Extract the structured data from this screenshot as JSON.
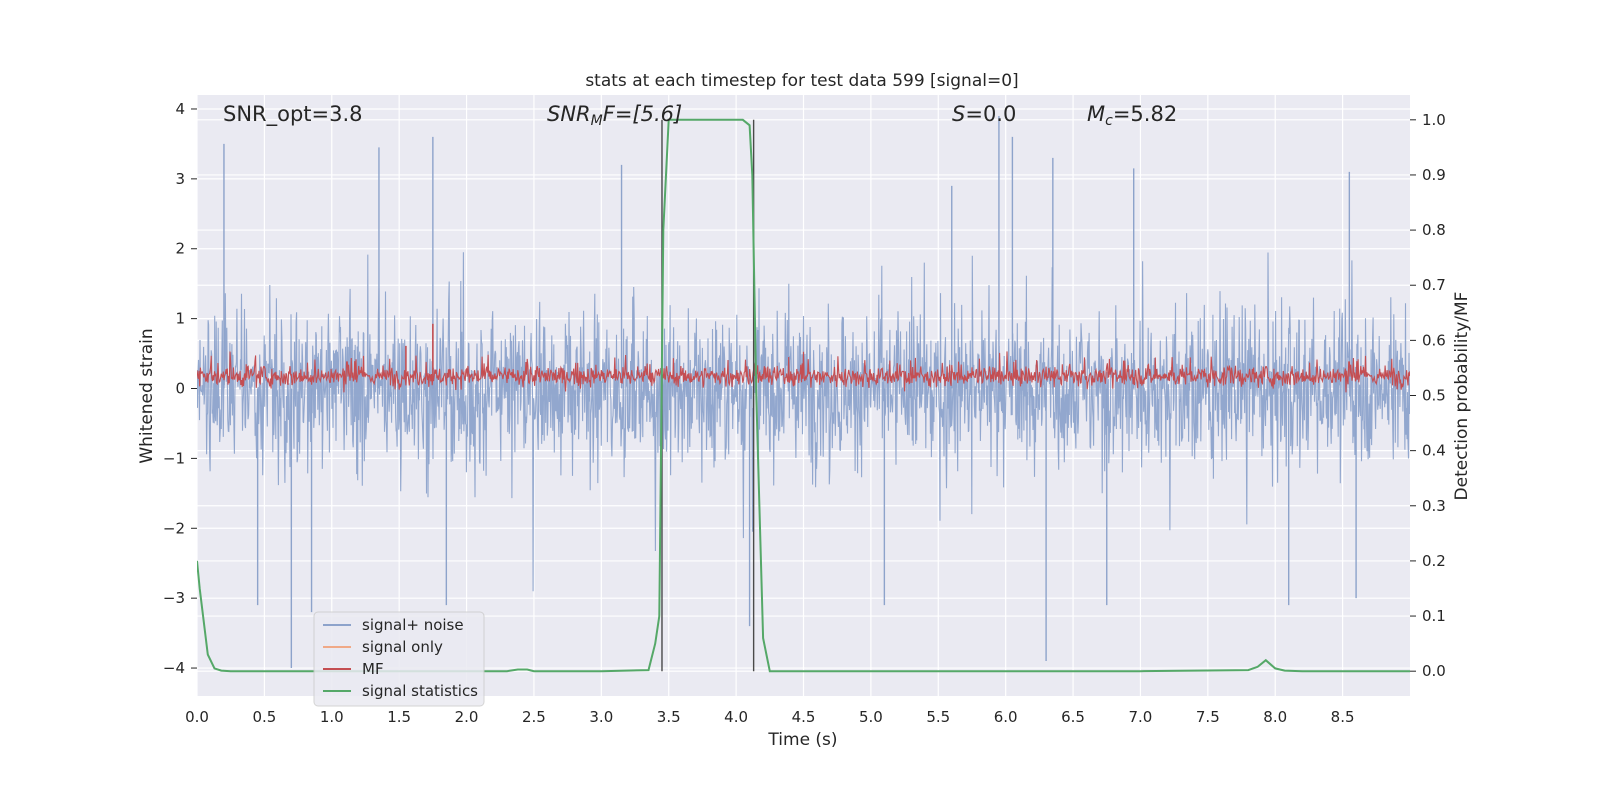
{
  "chart_data": {
    "type": "line",
    "title": "stats at each timestep for test data 599 [signal=0]",
    "xlabel": "Time (s)",
    "ylabel": "Whitened strain",
    "y2label": "Detection probability/MF",
    "xlim": [
      0.0,
      9.0
    ],
    "ylim": [
      -4.4,
      4.2
    ],
    "y2lim": [
      -0.045,
      1.045
    ],
    "x_ticks": [
      "0.0",
      "0.5",
      "1.0",
      "1.5",
      "2.0",
      "2.5",
      "3.0",
      "3.5",
      "4.0",
      "4.5",
      "5.0",
      "5.5",
      "6.0",
      "6.5",
      "7.0",
      "7.5",
      "8.0",
      "8.5"
    ],
    "y_ticks": [
      "4",
      "3",
      "2",
      "1",
      "0",
      "−1",
      "−2",
      "−3",
      "−4"
    ],
    "y2_ticks": [
      "1.0",
      "0.9",
      "0.8",
      "0.7",
      "0.6",
      "0.5",
      "0.4",
      "0.3",
      "0.2",
      "0.1",
      "0.0"
    ],
    "grid": true,
    "legend_position": "lower-left",
    "annotations": {
      "snr_opt": "SNR_opt=3.8",
      "snr_mf_base": "SNR",
      "snr_mf_sub": "M",
      "snr_mf_rest": "F=[5.6]",
      "s_label": "S",
      "s_rest": "=0.0",
      "mc_base": "M",
      "mc_sub": "c",
      "mc_rest": "=5.82"
    },
    "vertical_lines_x": [
      3.45,
      4.13
    ],
    "series": [
      {
        "name": "signal+ noise",
        "color": "#8da3cb",
        "axis": "left",
        "note_level": "noise band ≈ -1.7 to 1.5, spikes up to 3.9 and down to -4.0",
        "spikes_up": [
          [
            0.2,
            3.5
          ],
          [
            1.35,
            3.45
          ],
          [
            1.75,
            3.6
          ],
          [
            3.15,
            3.2
          ],
          [
            5.6,
            2.9
          ],
          [
            5.95,
            3.9
          ],
          [
            6.05,
            3.6
          ],
          [
            6.35,
            3.3
          ],
          [
            6.95,
            3.15
          ],
          [
            8.55,
            3.1
          ]
        ],
        "spikes_down": [
          [
            0.45,
            -3.1
          ],
          [
            0.7,
            -4.0
          ],
          [
            0.85,
            -3.2
          ],
          [
            1.85,
            -3.1
          ],
          [
            4.1,
            -3.4
          ],
          [
            5.1,
            -3.1
          ],
          [
            6.3,
            -3.9
          ],
          [
            6.75,
            -3.1
          ],
          [
            8.1,
            -3.1
          ],
          [
            8.6,
            -3.0
          ]
        ]
      },
      {
        "name": "signal only",
        "color": "#f0a987",
        "axis": "left",
        "values": []
      },
      {
        "name": "MF",
        "color": "#c44e52",
        "axis": "right",
        "note_level": "fluctuates ≈ 0.51 to 0.57",
        "spikes": [
          [
            1.55,
            0.59
          ],
          [
            1.75,
            0.63
          ]
        ]
      },
      {
        "name": "signal statistics",
        "color": "#55a868",
        "axis": "right",
        "x": [
          0.0,
          0.02,
          0.08,
          0.13,
          0.18,
          0.25,
          0.4,
          1.0,
          2.0,
          2.3,
          2.38,
          2.45,
          2.5,
          3.0,
          3.35,
          3.4,
          3.43,
          3.46,
          3.5,
          3.6,
          4.0,
          4.05,
          4.1,
          4.12,
          4.15,
          4.2,
          4.25,
          5.0,
          7.0,
          7.8,
          7.87,
          7.93,
          8.0,
          8.07,
          8.2,
          9.0
        ],
        "values": [
          0.2,
          0.15,
          0.03,
          0.005,
          0.001,
          0.0,
          0.0,
          0.0,
          0.0,
          0.0,
          0.003,
          0.003,
          0.0,
          0.0,
          0.002,
          0.05,
          0.1,
          0.8,
          1.0,
          1.0,
          1.0,
          1.0,
          0.99,
          0.9,
          0.5,
          0.06,
          0.0,
          0.0,
          0.0,
          0.002,
          0.008,
          0.02,
          0.005,
          0.001,
          0.0,
          0.0
        ]
      }
    ]
  }
}
